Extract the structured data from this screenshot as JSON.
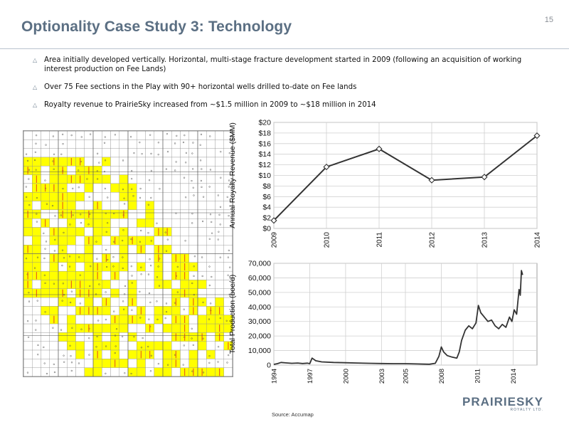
{
  "page": {
    "number": "15",
    "title": "Optionality Case Study 3: Technology"
  },
  "bullets": [
    "Area initially developed vertically. Horizontal, multi-stage fracture development started in 2009 (following an acquisition of working interest production on Fee Lands)",
    "Over 75 Fee sections in the Play with 90+ horizontal wells drilled to-date on Fee lands",
    "Royalty revenue to PrairieSky increased from ~$1.5 million in 2009 to ~$18 million in 2014"
  ],
  "colors": {
    "title": "#5b6f83",
    "rule": "#b9c3cf",
    "fee_land": "#ffff00",
    "well_hz": "#e8641a",
    "line": "#333333"
  },
  "icons": {
    "bullet": "triangle-up-icon"
  },
  "map": {
    "description_shown": false
  },
  "chart_data": [
    {
      "type": "line",
      "ylabel": "Annual Royalty Revenue ($MM)",
      "xlabel": "",
      "categories": [
        "2009",
        "2010",
        "2011",
        "2012",
        "2013",
        "2014"
      ],
      "values": [
        1.5,
        11.6,
        15.0,
        9.1,
        9.7,
        17.5
      ],
      "ylim": [
        0,
        20
      ],
      "yticks": [
        "$0",
        "$2",
        "$4",
        "$6",
        "$8",
        "$10",
        "$12",
        "$14",
        "$16",
        "$18",
        "$20"
      ],
      "grid": true,
      "markers": "open-diamond"
    },
    {
      "type": "line",
      "ylabel": "Total Production (boe/d)",
      "xlabel": "",
      "xticks": [
        "1994",
        "1997",
        "2000",
        "2003",
        "2005",
        "2008",
        "2011",
        "2014"
      ],
      "xlim": [
        1994,
        2016
      ],
      "ylim": [
        0,
        70000
      ],
      "yticks": [
        "0",
        "10,000",
        "20,000",
        "30,000",
        "40,000",
        "50,000",
        "60,000",
        "70,000"
      ],
      "grid": true,
      "x": [
        1994,
        1994.3,
        1994.6,
        1995,
        1995.5,
        1996,
        1996.4,
        1996.8,
        1997.0,
        1997.2,
        1997.5,
        1998,
        1999,
        2000,
        2001,
        2002,
        2003,
        2004,
        2005,
        2006,
        2007,
        2007.5,
        2007.8,
        2008.0,
        2008.2,
        2008.5,
        2008.9,
        2009.3,
        2009.5,
        2009.7,
        2010.0,
        2010.3,
        2010.6,
        2010.9,
        2011.1,
        2011.3,
        2011.6,
        2011.9,
        2012.2,
        2012.5,
        2012.8,
        2013.1,
        2013.4,
        2013.7,
        2013.9,
        2014.1,
        2014.3,
        2014.5,
        2014.6,
        2014.7,
        2014.8
      ],
      "y": [
        500,
        1000,
        1800,
        1500,
        1200,
        1400,
        1100,
        1300,
        1000,
        4800,
        3000,
        2200,
        1800,
        1600,
        1400,
        1200,
        1100,
        1000,
        1000,
        800,
        600,
        1200,
        6000,
        12500,
        9000,
        6500,
        5500,
        4800,
        9000,
        17000,
        24000,
        27000,
        25000,
        29000,
        41000,
        36000,
        33000,
        30000,
        31000,
        27000,
        25000,
        28000,
        26000,
        33000,
        30000,
        38000,
        35000,
        52000,
        48000,
        65000,
        62000
      ]
    }
  ],
  "footer": {
    "source": "Source: Accumap",
    "logo_main": "PRAIRIESKY",
    "logo_sub": "ROYALTY LTD."
  }
}
